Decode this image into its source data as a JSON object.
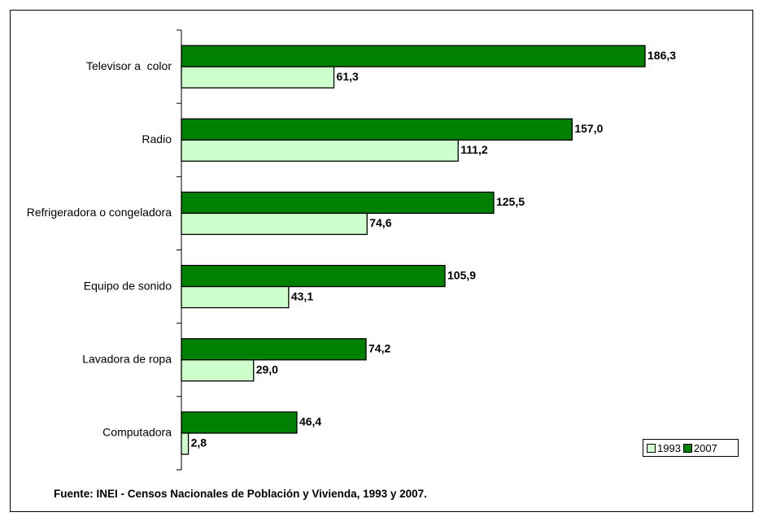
{
  "chart_data": {
    "type": "bar",
    "orientation": "horizontal",
    "categories": [
      "Televisor a  color",
      "Radio",
      "Refrigeradora o congeladora",
      "Equipo de sonido",
      "Lavadora de ropa",
      "Computadora"
    ],
    "series": [
      {
        "name": "2007",
        "values": [
          186.3,
          157.0,
          125.5,
          105.9,
          74.2,
          46.4
        ],
        "labels": [
          "186,3",
          "157,0",
          "125,5",
          "105,9",
          "74,2",
          "46,4"
        ],
        "color": "#008000"
      },
      {
        "name": "1993",
        "values": [
          61.3,
          111.2,
          74.6,
          43.1,
          29.0,
          2.8
        ],
        "labels": [
          "61,3",
          "111,2",
          "74,6",
          "43,1",
          "29,0",
          "2,8"
        ],
        "color": "#ccffcc"
      }
    ],
    "xlim": [
      0,
      232
    ],
    "grid": false,
    "legend_position": "bottom-right"
  },
  "legend": {
    "items": [
      {
        "label": "1993",
        "color": "#ccffcc"
      },
      {
        "label": "2007",
        "color": "#008000"
      }
    ]
  },
  "footnote": "Fuente: INEI - Censos Nacionales de Población y Vivienda, 1993 y 2007."
}
